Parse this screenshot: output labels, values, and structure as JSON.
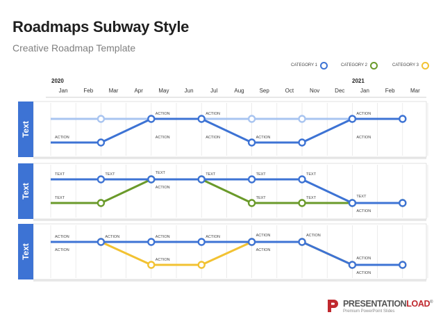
{
  "header": {
    "title": "Roadmaps Subway Style",
    "subtitle": "Creative Roadmap Template"
  },
  "legend": [
    {
      "label": "CATEGORY 1",
      "color": "#3d73d4"
    },
    {
      "label": "CATEGORY 2",
      "color": "#6a9a2a"
    },
    {
      "label": "CATEGORY 3",
      "color": "#f2c232"
    }
  ],
  "years": [
    "2020",
    "2021"
  ],
  "months": [
    "Jan",
    "Feb",
    "Mar",
    "Apr",
    "May",
    "Jun",
    "Jul",
    "Aug",
    "Sep",
    "Oct",
    "Nov",
    "Dec",
    "Jan",
    "Feb",
    "Mar"
  ],
  "colors": {
    "blue": "#3d73d4",
    "light_blue": "#a8c4f0",
    "green": "#6a9a2a",
    "yellow": "#f2c232",
    "tab": "#3d73d4"
  },
  "lanes": [
    {
      "tab_label": "Text",
      "lines": [
        {
          "color": "light_blue",
          "levels": [
            1,
            1,
            1,
            1,
            1,
            1,
            1,
            1,
            1,
            1,
            1,
            1,
            1,
            1,
            1
          ],
          "stops": [
            2,
            4,
            6,
            8,
            10,
            12,
            14
          ]
        },
        {
          "color": "blue",
          "levels": [
            0,
            0,
            0,
            0,
            1,
            1,
            1,
            1,
            0,
            0,
            0,
            0,
            1,
            1,
            1
          ],
          "stops": [
            2,
            4,
            6,
            8,
            10,
            12,
            14
          ]
        }
      ],
      "labels": [
        {
          "text": "ACTION",
          "col": 0,
          "level": 0,
          "pos": "above"
        },
        {
          "text": "ACTION",
          "col": 4,
          "level": 1,
          "pos": "above"
        },
        {
          "text": "ACTION",
          "col": 6,
          "level": 1,
          "pos": "above"
        },
        {
          "text": "ACTION",
          "col": 12,
          "level": 1,
          "pos": "above"
        },
        {
          "text": "ACTION",
          "col": 4,
          "level": 0,
          "pos": "above"
        },
        {
          "text": "ACTION",
          "col": 6,
          "level": 0,
          "pos": "above"
        },
        {
          "text": "ACTION",
          "col": 8,
          "level": 0,
          "pos": "above"
        },
        {
          "text": "ACTION",
          "col": 12,
          "level": 0,
          "pos": "above"
        }
      ]
    },
    {
      "tab_label": "Text",
      "lines": [
        {
          "color": "green",
          "levels": [
            0,
            0,
            0,
            0,
            1,
            1,
            1,
            1,
            0,
            0,
            0,
            0,
            0,
            0,
            0
          ],
          "stops": [
            2,
            4,
            6,
            8,
            10,
            12,
            14
          ]
        },
        {
          "color": "blue",
          "levels": [
            1,
            1,
            1,
            1,
            1,
            1,
            1,
            1,
            1,
            1,
            1,
            1,
            0,
            0,
            0
          ],
          "stops": [
            2,
            4,
            6,
            8,
            10,
            12,
            14
          ]
        }
      ],
      "labels": [
        {
          "text": "TEXT",
          "col": 0,
          "level": 1,
          "pos": "above"
        },
        {
          "text": "TEXT",
          "col": 2,
          "level": 1,
          "pos": "above"
        },
        {
          "text": "TEXT",
          "col": 4,
          "level": 1,
          "pos": "above2"
        },
        {
          "text": "ACTION",
          "col": 4,
          "level": 1,
          "pos": "below"
        },
        {
          "text": "TEXT",
          "col": 6,
          "level": 1,
          "pos": "above"
        },
        {
          "text": "TEXT",
          "col": 8,
          "level": 1,
          "pos": "above"
        },
        {
          "text": "TEXT",
          "col": 10,
          "level": 1,
          "pos": "above"
        },
        {
          "text": "TEXT",
          "col": 0,
          "level": 0,
          "pos": "above"
        },
        {
          "text": "TEXT",
          "col": 8,
          "level": 0,
          "pos": "above"
        },
        {
          "text": "TEXT",
          "col": 10,
          "level": 0,
          "pos": "above"
        },
        {
          "text": "TEXT",
          "col": 12,
          "level": 0,
          "pos": "above2"
        },
        {
          "text": "ACTION",
          "col": 12,
          "level": 0,
          "pos": "below"
        }
      ]
    },
    {
      "tab_label": "Text",
      "lines": [
        {
          "color": "yellow",
          "levels": [
            1,
            1,
            1,
            1,
            0,
            0,
            0,
            0,
            1,
            1,
            1,
            1,
            0,
            0,
            0
          ],
          "stops": [
            2,
            4,
            6,
            8,
            10,
            12,
            14
          ]
        },
        {
          "color": "blue",
          "levels": [
            1,
            1,
            1,
            1,
            1,
            1,
            1,
            1,
            1,
            1,
            1,
            1,
            0,
            0,
            0
          ],
          "stops": [
            2,
            4,
            6,
            8,
            10,
            12,
            14
          ]
        }
      ],
      "labels": [
        {
          "text": "ACTION",
          "col": 0,
          "level": 1,
          "pos": "above"
        },
        {
          "text": "ACTION",
          "col": 0,
          "level": 1,
          "pos": "below"
        },
        {
          "text": "ACTION",
          "col": 2,
          "level": 1,
          "pos": "above"
        },
        {
          "text": "ACTION",
          "col": 4,
          "level": 1,
          "pos": "above"
        },
        {
          "text": "ACTION",
          "col": 4,
          "level": 0,
          "pos": "above"
        },
        {
          "text": "ACTION",
          "col": 6,
          "level": 1,
          "pos": "above"
        },
        {
          "text": "ACTION",
          "col": 8,
          "level": 1,
          "pos": "above2"
        },
        {
          "text": "ACTION",
          "col": 8,
          "level": 1,
          "pos": "below"
        },
        {
          "text": "ACTION",
          "col": 10,
          "level": 1,
          "pos": "above2"
        },
        {
          "text": "ACTION",
          "col": 12,
          "level": 0,
          "pos": "above2"
        },
        {
          "text": "ACTION",
          "col": 12,
          "level": 0,
          "pos": "below"
        }
      ]
    }
  ],
  "logo": {
    "brand_first": "PRESENTATION",
    "brand_second": "LOAD",
    "mark": "®",
    "tagline": "Premium PowerPoint Slides"
  }
}
